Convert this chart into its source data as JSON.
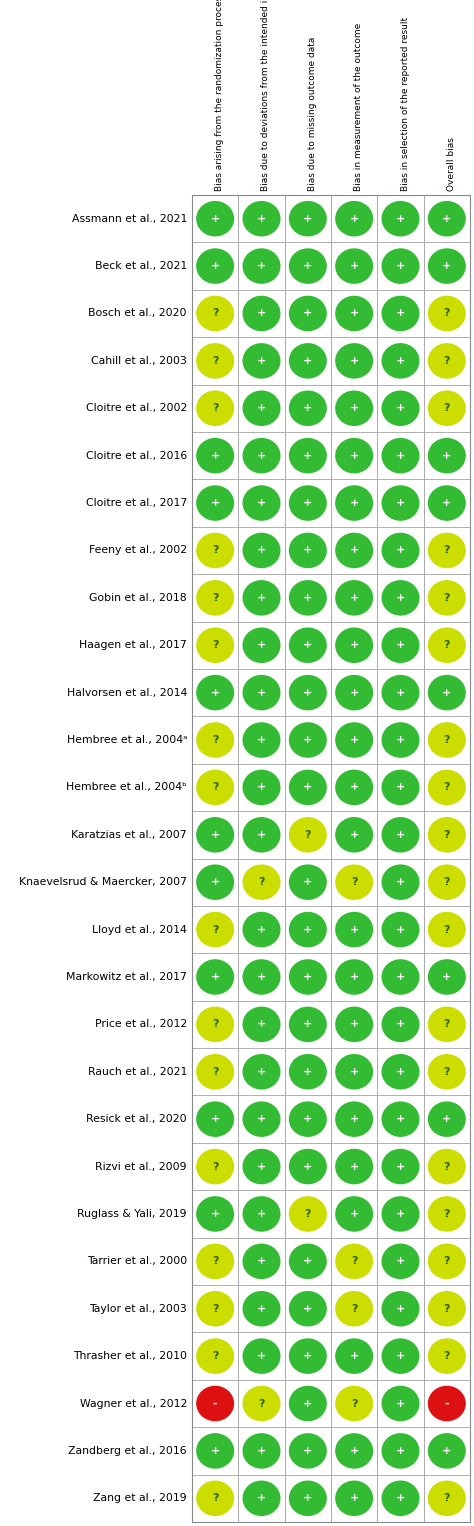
{
  "columns": [
    "Bias arising from the randomization process",
    "Bias due to deviations from the intended interventions",
    "Bias due to missing outcome data",
    "Bias in measurement of the outcome",
    "Bias in selection of the reported result",
    "Overall bias"
  ],
  "studies": [
    "Assmann et al., 2021",
    "Beck et al., 2021",
    "Bosch et al., 2020",
    "Cahill et al., 2003",
    "Cloitre et al., 2002",
    "Cloitre et al., 2016",
    "Cloitre et al., 2017",
    "Feeny et al., 2002",
    "Gobin et al., 2018",
    "Haagen et al., 2017",
    "Halvorsen et al., 2014",
    "Hembree et al., 2004a",
    "Hembree et al., 2004b",
    "Karatzias et al., 2007",
    "Knaevelsrud & Maercker, 2007",
    "Lloyd et al., 2014",
    "Markowitz et al., 2017",
    "Price et al., 2012",
    "Rauch et al., 2021",
    "Resick et al., 2020",
    "Rizvi et al., 2009",
    "Ruglass & Yali, 2019",
    "Tarrier et al., 2000",
    "Taylor et al., 2003",
    "Thrasher et al., 2010",
    "Wagner et al., 2012",
    "Zandberg et al., 2016",
    "Zang et al., 2019"
  ],
  "study_labels": [
    "Assmann et al., 2021",
    "Beck et al., 2021",
    "Bosch et al., 2020",
    "Cahill et al., 2003",
    "Cloitre et al., 2002",
    "Cloitre et al., 2016",
    "Cloitre et al., 2017",
    "Feeny et al., 2002",
    "Gobin et al., 2018",
    "Haagen et al., 2017",
    "Halvorsen et al., 2014",
    "Hembree et al., 2004ᵃ",
    "Hembree et al., 2004ᵇ",
    "Karatzias et al., 2007",
    "Knaevelsrud & Maercker, 2007",
    "Lloyd et al., 2014",
    "Markowitz et al., 2017",
    "Price et al., 2012",
    "Rauch et al., 2021",
    "Resick et al., 2020",
    "Rizvi et al., 2009",
    "Ruglass & Yali, 2019",
    "Tarrier et al., 2000",
    "Taylor et al., 2003",
    "Thrasher et al., 2010",
    "Wagner et al., 2012",
    "Zandberg et al., 2016",
    "Zang et al., 2019"
  ],
  "ratings": [
    [
      "+",
      "+",
      "+",
      "+",
      "+",
      "+"
    ],
    [
      "+",
      "+",
      "+",
      "+",
      "+",
      "+"
    ],
    [
      "?",
      "+",
      "+",
      "+",
      "+",
      "?"
    ],
    [
      "?",
      "+",
      "+",
      "+",
      "+",
      "?"
    ],
    [
      "?",
      "+",
      "+",
      "+",
      "+",
      "?"
    ],
    [
      "+",
      "+",
      "+",
      "+",
      "+",
      "+"
    ],
    [
      "+",
      "+",
      "+",
      "+",
      "+",
      "+"
    ],
    [
      "?",
      "+",
      "+",
      "+",
      "+",
      "?"
    ],
    [
      "?",
      "+",
      "+",
      "+",
      "+",
      "?"
    ],
    [
      "?",
      "+",
      "+",
      "+",
      "+",
      "?"
    ],
    [
      "+",
      "+",
      "+",
      "+",
      "+",
      "+"
    ],
    [
      "?",
      "+",
      "+",
      "+",
      "+",
      "?"
    ],
    [
      "?",
      "+",
      "+",
      "+",
      "+",
      "?"
    ],
    [
      "+",
      "+",
      "?",
      "+",
      "+",
      "?"
    ],
    [
      "+",
      "?",
      "+",
      "?",
      "+",
      "?"
    ],
    [
      "?",
      "+",
      "+",
      "+",
      "+",
      "?"
    ],
    [
      "+",
      "+",
      "+",
      "+",
      "+",
      "+"
    ],
    [
      "?",
      "+",
      "+",
      "+",
      "+",
      "?"
    ],
    [
      "?",
      "+",
      "+",
      "+",
      "+",
      "?"
    ],
    [
      "+",
      "+",
      "+",
      "+",
      "+",
      "+"
    ],
    [
      "?",
      "+",
      "+",
      "+",
      "+",
      "?"
    ],
    [
      "+",
      "+",
      "?",
      "+",
      "+",
      "?"
    ],
    [
      "?",
      "+",
      "+",
      "?",
      "+",
      "?"
    ],
    [
      "?",
      "+",
      "+",
      "?",
      "+",
      "?"
    ],
    [
      "?",
      "+",
      "+",
      "+",
      "+",
      "?"
    ],
    [
      "-",
      "?",
      "+",
      "?",
      "+",
      "-"
    ],
    [
      "+",
      "+",
      "+",
      "+",
      "+",
      "+"
    ],
    [
      "?",
      "+",
      "+",
      "+",
      "+",
      "?"
    ]
  ],
  "color_map": {
    "+": "#33bb33",
    "?": "#ccdd00",
    "-": "#dd1111"
  },
  "symbol_color_map": {
    "+": "#ffffff",
    "?": "#336600",
    "-": "#ffffff"
  },
  "bg_color": "#ffffff",
  "grid_color": "#aaaaaa",
  "header_color": "#000000",
  "study_color": "#000000"
}
